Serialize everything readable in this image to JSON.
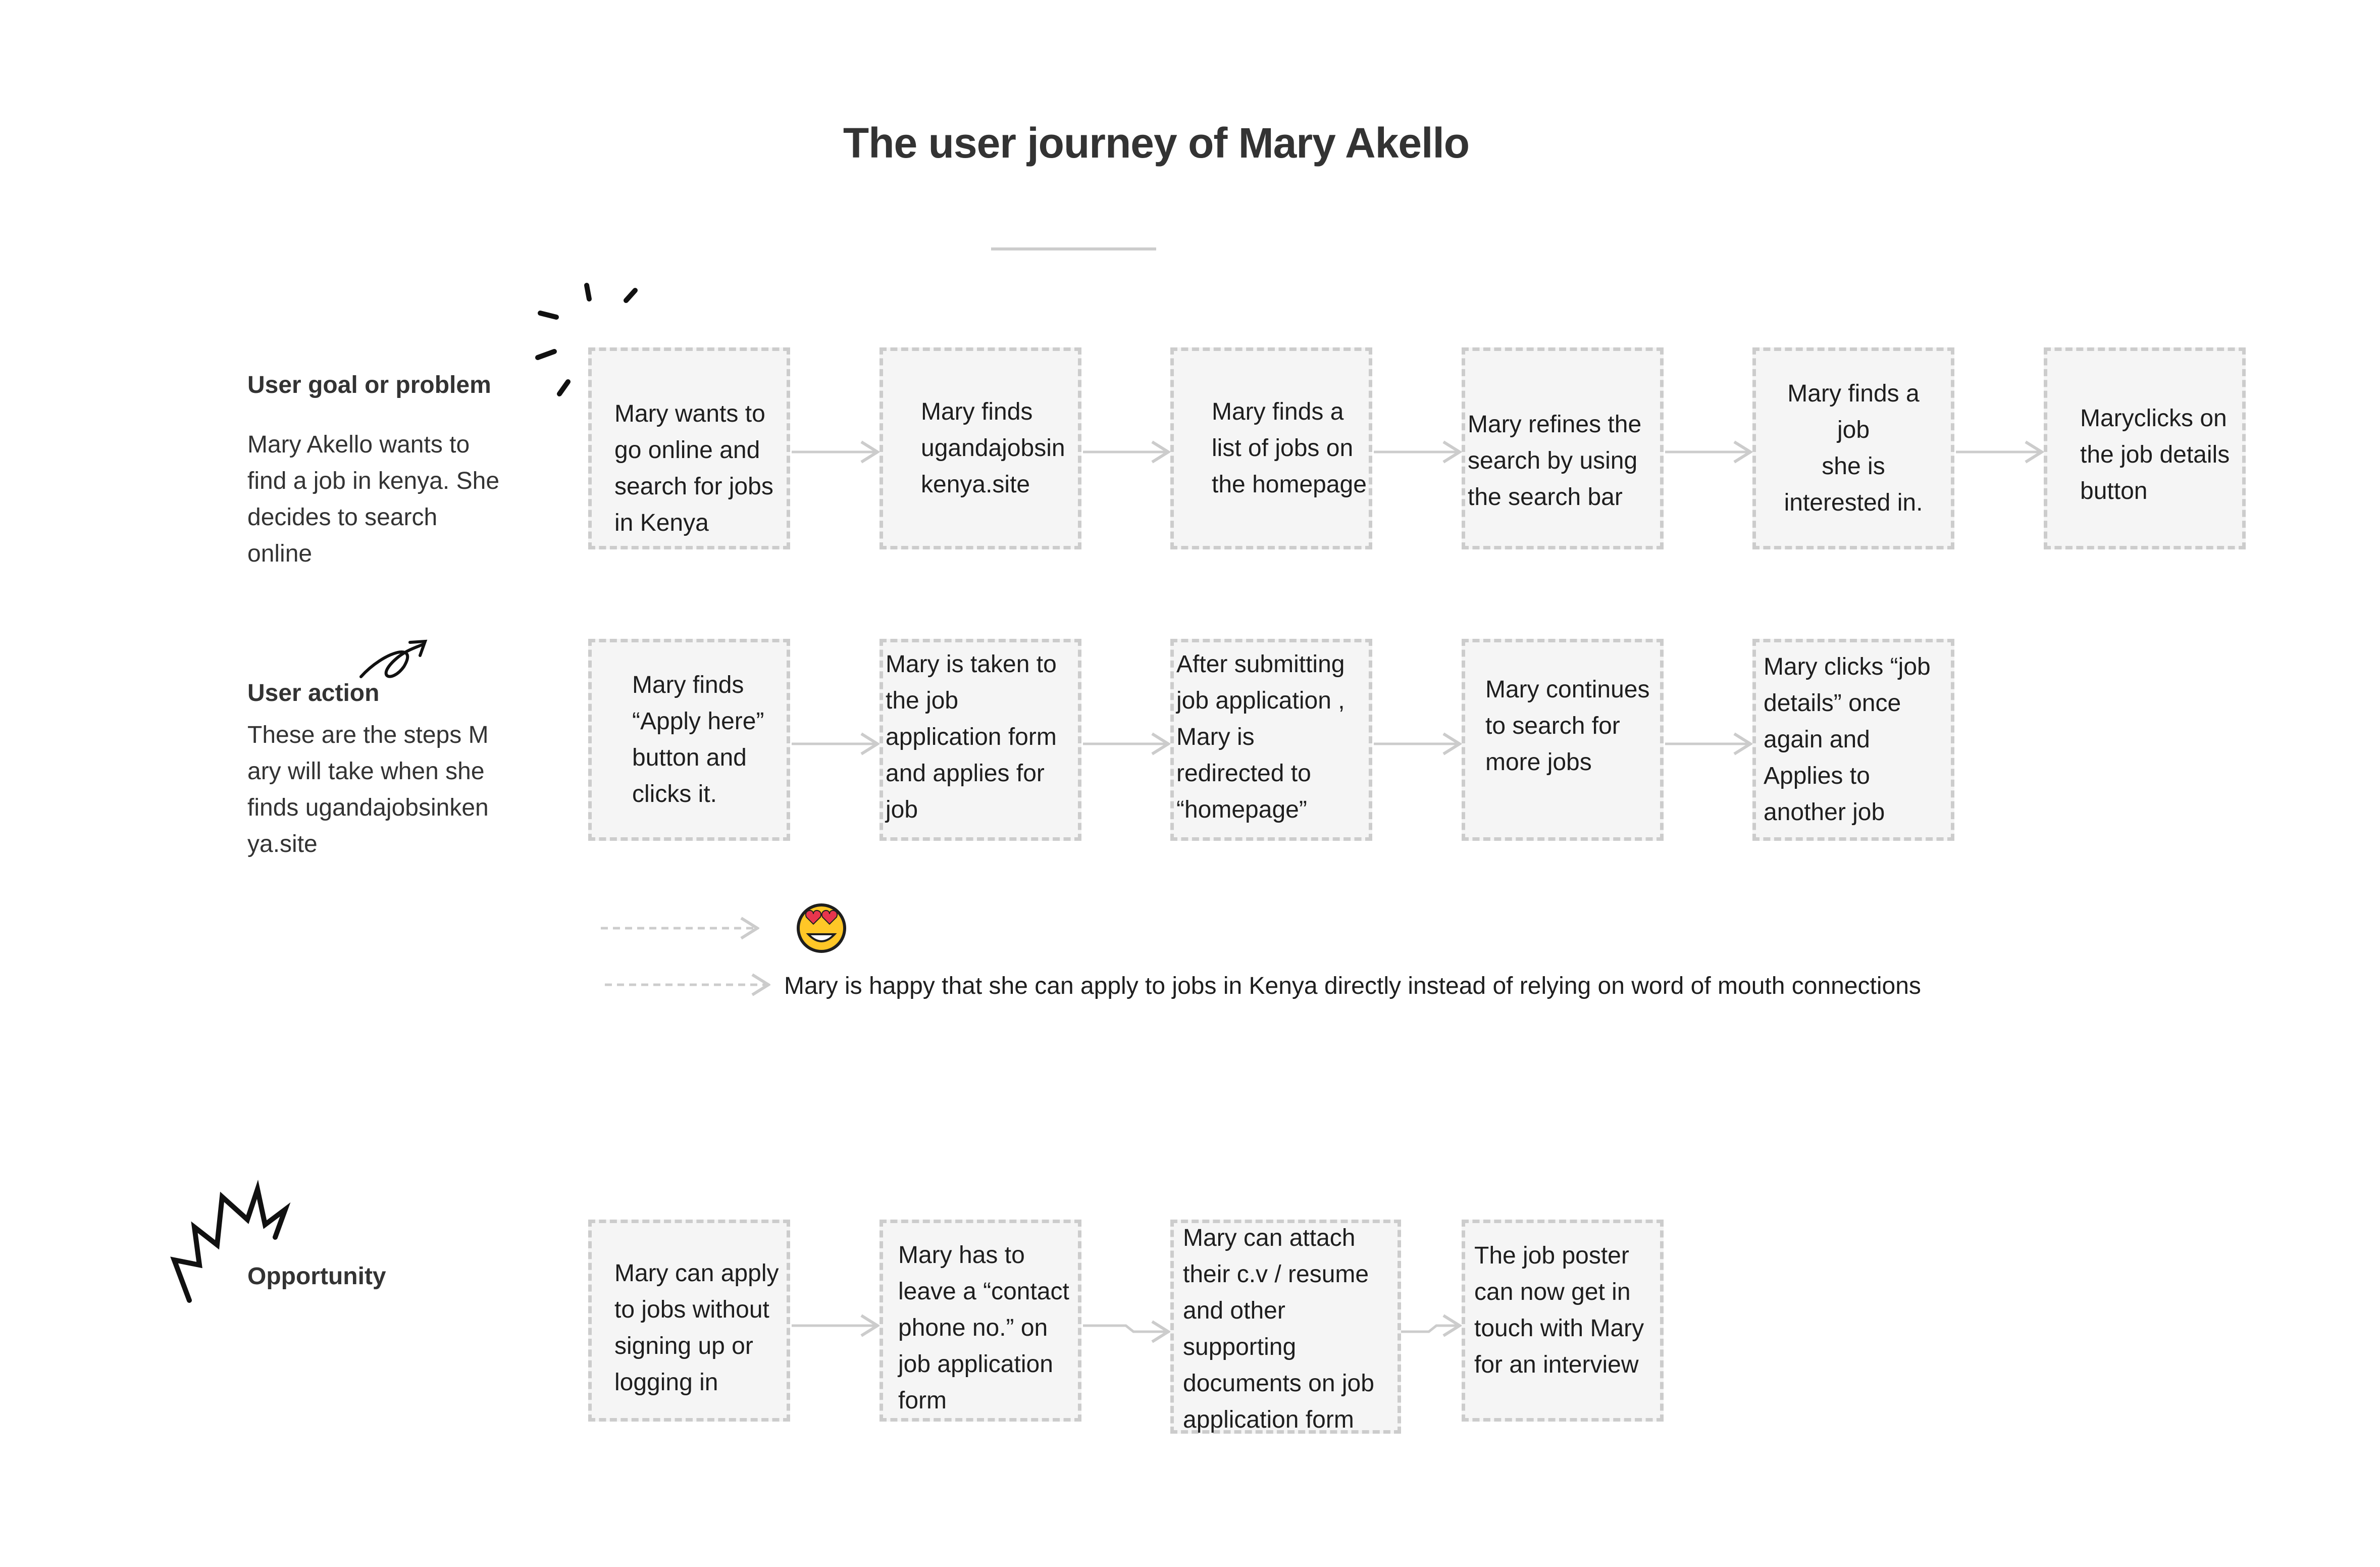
{
  "title": "The user journey of Mary Akello",
  "rows": {
    "goal": {
      "heading": "User goal or problem",
      "description": "Mary Akello wants to find a job in kenya. She decides to search online"
    },
    "action": {
      "heading": "User action",
      "description": "These are the steps Mary will take when she finds ugandajobsinkenya.site"
    },
    "opportunity": {
      "heading": "Opportunity"
    }
  },
  "goal_steps": [
    "Mary wants to go online and search for jobs in Kenya",
    "Mary finds ugandajobsin kenya.site",
    "Mary finds a list of jobs on the homepage",
    "Mary refines the search by using the search bar",
    "Mary finds a\njob\nshe is\ninterested in.",
    "Maryclicks on the job details button"
  ],
  "action_steps": [
    "Mary finds “Apply here” button and clicks it.",
    "Mary is taken to the job application form and applies for job",
    "After submitting job application , Mary is redirected to “homepage”",
    "Mary continues to search for more jobs",
    "Mary clicks “job details” once again and Applies to another job"
  ],
  "emotion": {
    "icon": "heart-eyes-emoji-icon",
    "statement": "Mary is happy that she can apply to jobs in Kenya directly instead of relying on word of mouth connections"
  },
  "opportunity_steps": [
    "Mary can apply to jobs without signing up or logging in",
    "Mary has to leave a “contact phone no.” on job application form",
    "Mary can attach their c.v / resume and other supporting documents on job application form",
    "The job poster can now get in touch with Mary for an interview"
  ],
  "colors": {
    "box_fill": "#f5f5f5",
    "box_border": "#cccccc",
    "arrow": "#cccccc",
    "text": "#1e1e1e",
    "heading": "#333333",
    "emoji_face": "#ffc727"
  }
}
